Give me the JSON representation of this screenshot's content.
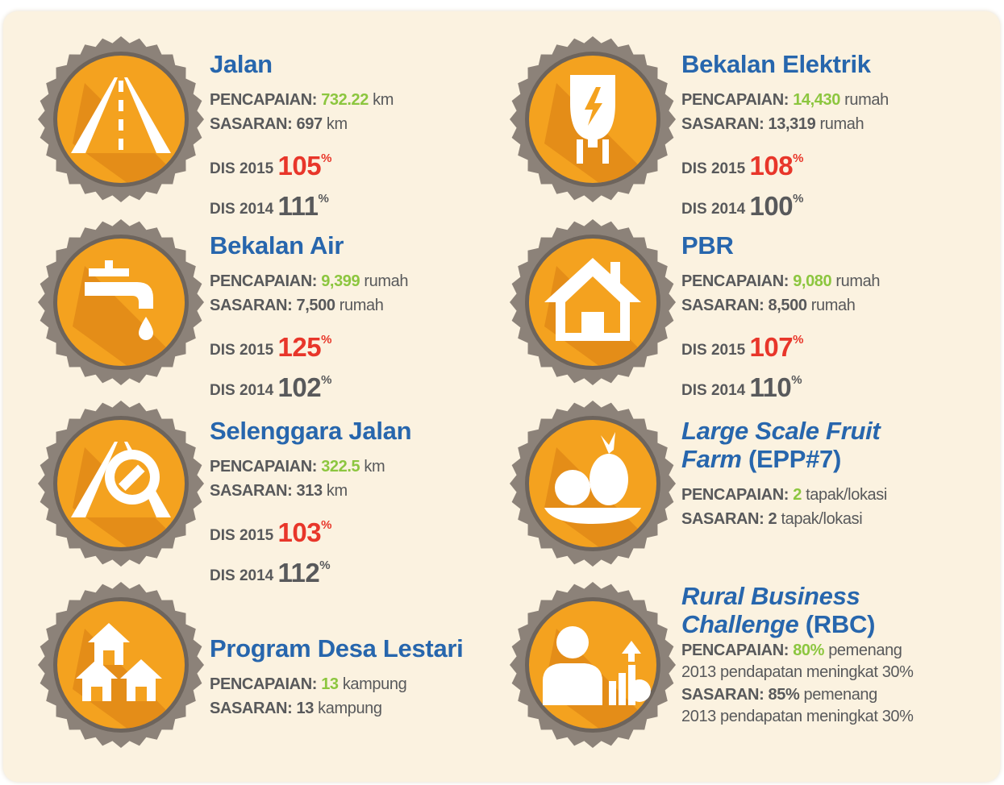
{
  "left": [
    {
      "title": "Jalan",
      "pencapaian": {
        "label": "PENCAPAIAN:",
        "value": "732.22",
        "unit": "km"
      },
      "sasaran": {
        "label": "SASARAN:",
        "value": "697",
        "unit": "km"
      },
      "dis": [
        {
          "label": "DIS 2015",
          "value": "105",
          "unit": "%"
        },
        {
          "label": "DIS 2014",
          "value": "111",
          "unit": "%"
        }
      ]
    },
    {
      "title": "Bekalan Air",
      "pencapaian": {
        "label": "PENCAPAIAN:",
        "value": "9,399",
        "unit": "rumah"
      },
      "sasaran": {
        "label": "SASARAN:",
        "value": "7,500",
        "unit": "rumah"
      },
      "dis": [
        {
          "label": "DIS 2015",
          "value": "125",
          "unit": "%"
        },
        {
          "label": "DIS 2014",
          "value": "102",
          "unit": "%"
        }
      ]
    },
    {
      "title": "Selenggara Jalan",
      "pencapaian": {
        "label": "PENCAPAIAN:",
        "value": "322.5",
        "unit": "km"
      },
      "sasaran": {
        "label": "SASARAN:",
        "value": "313",
        "unit": "km"
      },
      "dis": [
        {
          "label": "DIS 2015",
          "value": "103",
          "unit": "%"
        },
        {
          "label": "DIS 2014",
          "value": "112",
          "unit": "%"
        }
      ]
    },
    {
      "title": "Program Desa Lestari",
      "pencapaian": {
        "label": "PENCAPAIAN:",
        "value": "13",
        "unit": "kampung"
      },
      "sasaran": {
        "label": "SASARAN:",
        "value": "13",
        "unit": "kampung"
      }
    }
  ],
  "right": [
    {
      "title": "Bekalan Elektrik",
      "pencapaian": {
        "label": "PENCAPAIAN:",
        "value": "14,430",
        "unit": "rumah"
      },
      "sasaran": {
        "label": "SASARAN:",
        "value": "13,319",
        "unit": "rumah"
      },
      "dis": [
        {
          "label": "DIS 2015",
          "value": "108",
          "unit": "%"
        },
        {
          "label": "DIS 2014",
          "value": "100",
          "unit": "%"
        }
      ]
    },
    {
      "title": "PBR",
      "pencapaian": {
        "label": "PENCAPAIAN:",
        "value": "9,080",
        "unit": "rumah"
      },
      "sasaran": {
        "label": "SASARAN:",
        "value": "8,500",
        "unit": "rumah"
      },
      "dis": [
        {
          "label": "DIS 2015",
          "value": "107",
          "unit": "%"
        },
        {
          "label": "DIS 2014",
          "value": "110",
          "unit": "%"
        }
      ]
    },
    {
      "title_italic": "Large Scale Fruit Farm",
      "title_suffix": "(EPP#7)",
      "pencapaian": {
        "label": "PENCAPAIAN:",
        "value": "2",
        "unit": "tapak/lokasi"
      },
      "sasaran": {
        "label": "SASARAN:",
        "value": "2",
        "unit": "tapak/lokasi"
      }
    },
    {
      "title_italic": "Rural Business Challenge",
      "title_suffix": "(RBC)",
      "pencapaian": {
        "label": "PENCAPAIAN:",
        "value": "80%",
        "unit": "pemenang",
        "note": "2013 pendapatan meningkat 30%"
      },
      "sasaran": {
        "label": "SASARAN:",
        "value": "85%",
        "unit": "pemenang",
        "note": "2013 pendapatan meningkat 30%"
      }
    }
  ]
}
